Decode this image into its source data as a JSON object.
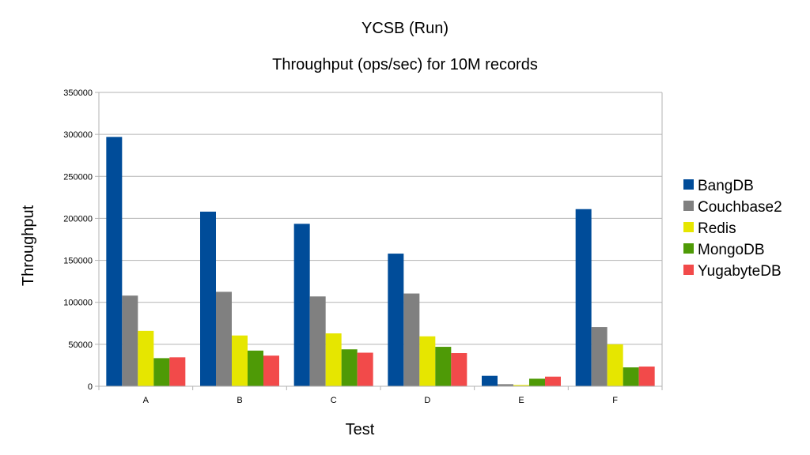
{
  "chart_data": {
    "type": "bar",
    "title": "YCSB (Run)",
    "subtitle": "Throughput (ops/sec) for 10M records",
    "xlabel": "Test",
    "ylabel": "Throughput",
    "ylim": [
      0,
      350000
    ],
    "yticks": [
      0,
      50000,
      100000,
      150000,
      200000,
      250000,
      300000,
      350000
    ],
    "ytick_labels": [
      "0",
      "50000",
      "100000",
      "150000",
      "200000",
      "250000",
      "300000",
      "350000"
    ],
    "grid": true,
    "legend_position": "right",
    "categories": [
      "A",
      "B",
      "C",
      "D",
      "E",
      "F"
    ],
    "series": [
      {
        "name": "BangDB",
        "color": "#004c99",
        "values": [
          297000,
          208000,
          193500,
          158000,
          12500,
          211000
        ]
      },
      {
        "name": "Couchbase2",
        "color": "#808080",
        "values": [
          108000,
          112500,
          107000,
          110500,
          2500,
          70500
        ]
      },
      {
        "name": "Redis",
        "color": "#e6e600",
        "values": [
          66000,
          60500,
          63000,
          59500,
          1500,
          50000
        ]
      },
      {
        "name": "MongoDB",
        "color": "#4e9a06",
        "values": [
          33500,
          42500,
          44000,
          47000,
          9000,
          22500
        ]
      },
      {
        "name": "YugabyteDB",
        "color": "#f24a4a",
        "values": [
          34500,
          36500,
          40000,
          39500,
          11500,
          23500
        ]
      }
    ]
  }
}
